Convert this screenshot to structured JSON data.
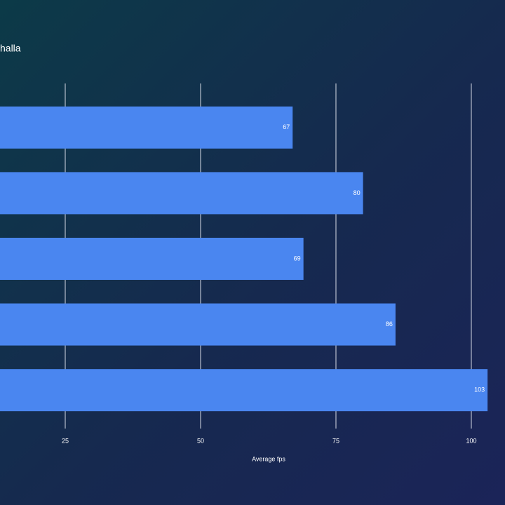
{
  "chart_data": {
    "type": "bar",
    "orientation": "horizontal",
    "title": "halla",
    "categories": [
      null,
      null,
      null,
      null,
      null
    ],
    "values": [
      67,
      80,
      69,
      86,
      103
    ],
    "color": "#4a86f0",
    "xlabel": "Average fps",
    "xlim": [
      0,
      106
    ],
    "xticks": [
      25,
      50,
      75,
      100
    ],
    "grid": true
  }
}
